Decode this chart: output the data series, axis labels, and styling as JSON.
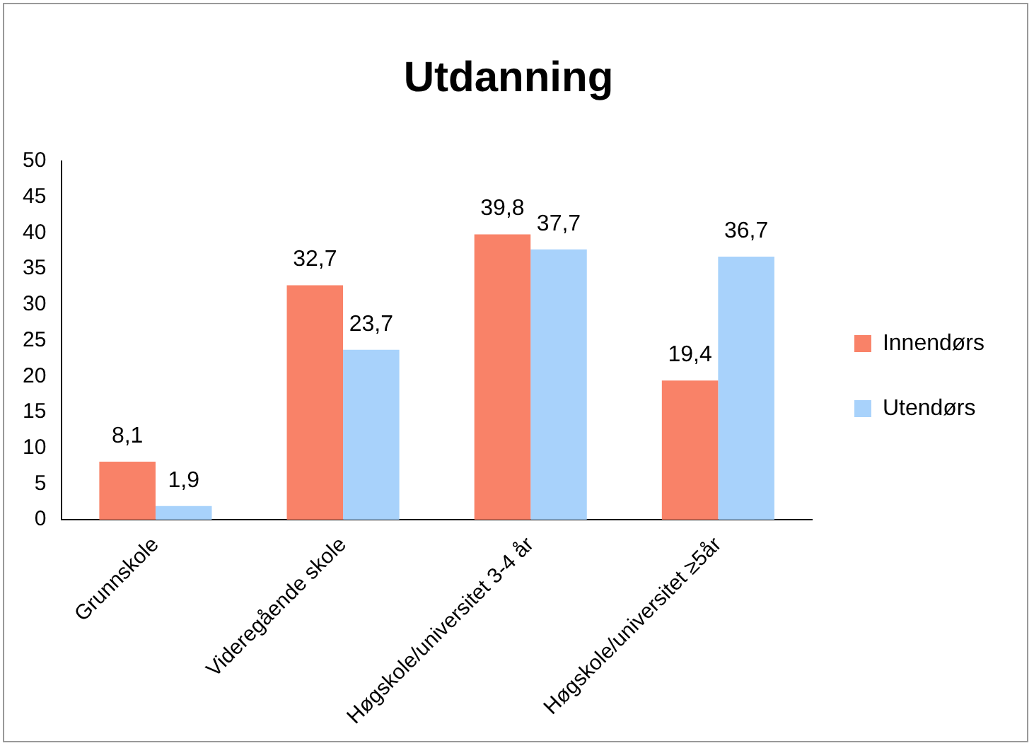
{
  "chart_data": {
    "type": "bar",
    "title": "Utdanning",
    "categories": [
      "Grunnskole",
      "Videregående skole",
      "Høgskole/universitet 3-4 år",
      "Høgskole/universitet ≥5år"
    ],
    "series": [
      {
        "name": "Innendørs",
        "color": "#f98268",
        "values": [
          8.1,
          32.7,
          39.8,
          19.4
        ],
        "value_labels": [
          "8,1",
          "32,7",
          "39,8",
          "19,4"
        ]
      },
      {
        "name": "Utendørs",
        "color": "#a8d2fb",
        "values": [
          1.9,
          23.7,
          37.7,
          36.7
        ],
        "value_labels": [
          "1,9",
          "23,7",
          "37,7",
          "36,7"
        ]
      }
    ],
    "ylim": [
      0,
      50
    ],
    "yticks": [
      0,
      5,
      10,
      15,
      20,
      25,
      30,
      35,
      40,
      45,
      50
    ],
    "grid": false,
    "legend": "right"
  }
}
